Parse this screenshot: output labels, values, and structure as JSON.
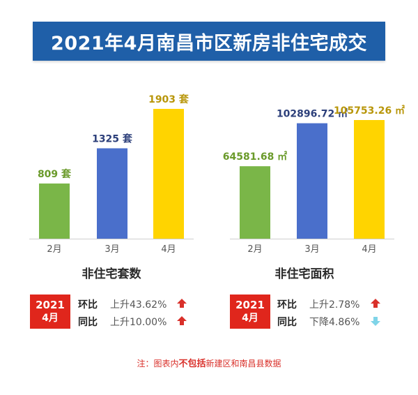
{
  "title": "2021年4月南昌市区新房非住宅成交",
  "chart_data": [
    {
      "type": "bar",
      "title": "非住宅套数",
      "categories": [
        "2月",
        "3月",
        "4月"
      ],
      "values": [
        809,
        1325,
        1903
      ],
      "value_labels": [
        "809 套",
        "1325 套",
        "1903 套"
      ],
      "colors": [
        "#7ab648",
        "#4a6fcb",
        "#ffd400"
      ],
      "label_colors": [
        "#6a9a2a",
        "#2c3f7a",
        "#b8960a"
      ],
      "ylim": [
        0,
        1903
      ]
    },
    {
      "type": "bar",
      "title": "非住宅面积",
      "categories": [
        "2月",
        "3月",
        "4月"
      ],
      "values": [
        64581.68,
        102896.72,
        105753.26
      ],
      "value_labels": [
        "64581.68 ㎡",
        "102896.72 ㎡",
        "105753.26 ㎡"
      ],
      "colors": [
        "#7ab648",
        "#4a6fcb",
        "#ffd400"
      ],
      "label_colors": [
        "#6a9a2a",
        "#2c3f7a",
        "#b8960a"
      ],
      "ylim": [
        0,
        105753.26
      ]
    }
  ],
  "stats": [
    {
      "year": "2021",
      "month": "4月",
      "rows": [
        {
          "label": "环比",
          "value": "上升43.62%",
          "direction": "up",
          "color": "#d9302a"
        },
        {
          "label": "同比",
          "value": "上升10.00%",
          "direction": "up",
          "color": "#d9302a"
        }
      ]
    },
    {
      "year": "2021",
      "month": "4月",
      "rows": [
        {
          "label": "环比",
          "value": "上升2.78%",
          "direction": "up",
          "color": "#d9302a"
        },
        {
          "label": "同比",
          "value": "下降4.86%",
          "direction": "down",
          "color": "#7fd4e8"
        }
      ]
    }
  ],
  "note": {
    "prefix": "注：图表内",
    "emphasis": "不包括",
    "suffix": "新建区和南昌县数据"
  }
}
